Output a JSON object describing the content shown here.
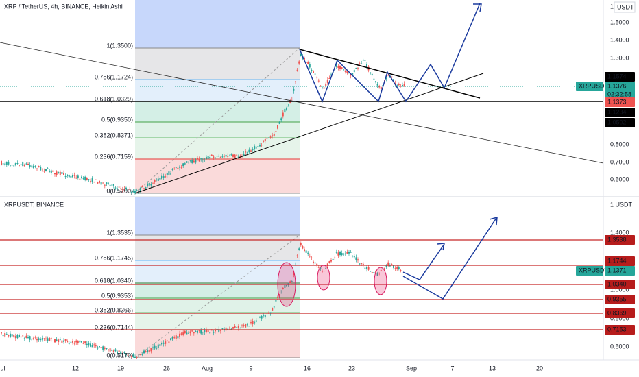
{
  "top_pane": {
    "title": "XRP / TetherUS, 4h, BINANCE, Heikin Ashi",
    "currency": "USDT",
    "axis_mark": "1",
    "price_labels": [
      "1.5000",
      "1.4000",
      "1.3000",
      "0.8000",
      "0.7000",
      "0.6000"
    ],
    "fib_labels": [
      "1(1.3500)",
      "0.786(1.1724)",
      "0.618(1.0329)",
      "0.5(0.9350)",
      "0.382(0.8371)",
      "0.236(0.7159)",
      "0(0.5200)"
    ],
    "tags": [
      "1.1574",
      "XRPUSDT",
      "1.1376",
      "02:32:58",
      "1.1373",
      "1.1234",
      "1.0502"
    ]
  },
  "bottom_pane": {
    "title": "XRPUSDT, BINANCE",
    "currency": "1 USDT",
    "price_labels": [
      "1.4000",
      "1.0000",
      "0.8000",
      "0.6000"
    ],
    "fib_labels": [
      "1(1.3535)",
      "0.786(1.1745)",
      "0.618(1.0340)",
      "0.5(0.9353)",
      "0.382(0.8366)",
      "0.236(0.7144)",
      "0(0.5170)"
    ],
    "tags": [
      "1.3538",
      "1.1744",
      "XRPUSDT",
      "1.1371",
      "1.0340",
      "0.9355",
      "0.8369",
      "0.7153"
    ]
  },
  "x_axis": [
    "ul",
    "12",
    "19",
    "26",
    "Aug",
    "9",
    "16",
    "23",
    "Sep",
    "7",
    "13",
    "20"
  ]
}
